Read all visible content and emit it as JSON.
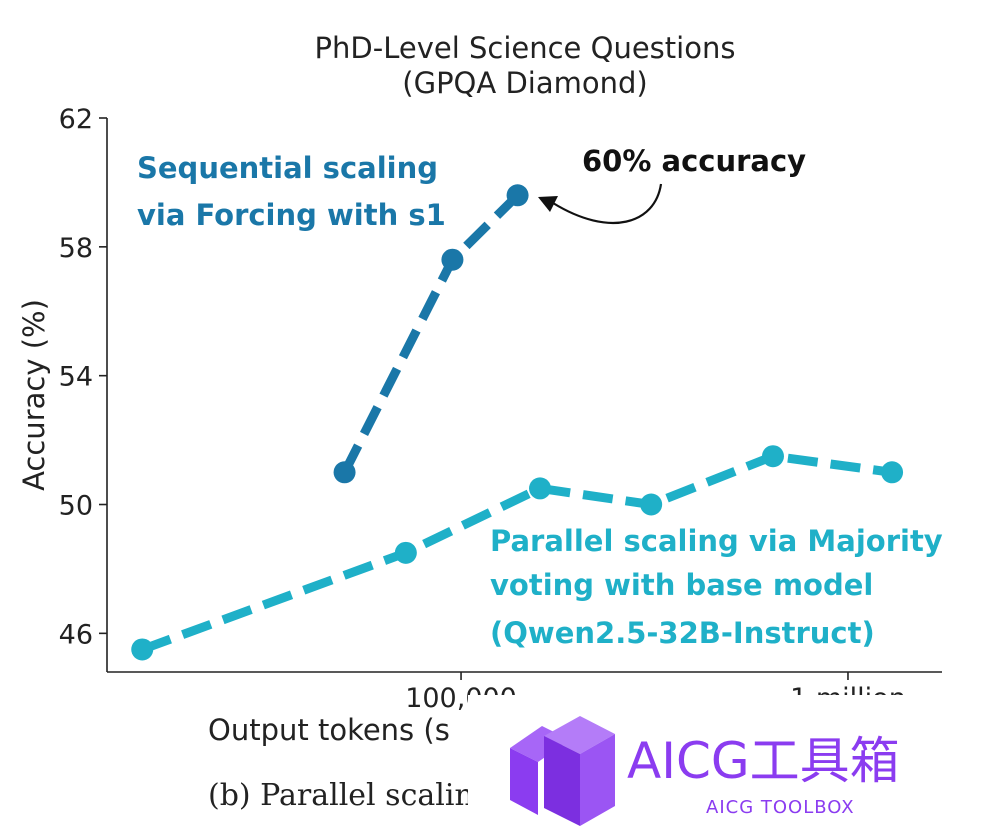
{
  "chart_data": {
    "type": "line",
    "title": [
      "PhD-Level Science Questions",
      "(GPQA Diamond)"
    ],
    "xlabel": "Output tokens (s",
    "ylabel": "Accuracy (%)",
    "x_scale": "log",
    "ylim": [
      44.8,
      62
    ],
    "yticks": [
      46,
      50,
      54,
      58,
      62
    ],
    "xticks": [
      {
        "value": 100000,
        "label": "100,000"
      },
      {
        "value": 1000000,
        "label": "1 million"
      }
    ],
    "series": [
      {
        "name": "Sequential scaling via Forcing with s1",
        "label_lines": [
          "Sequential scaling",
          "via Forcing with s1"
        ],
        "color": "#1a77a8",
        "points": [
          {
            "x": 50000,
            "y": 51.0
          },
          {
            "x": 95000,
            "y": 57.6
          },
          {
            "x": 140000,
            "y": 59.6
          }
        ]
      },
      {
        "name": "Parallel scaling via Majority voting with base model (Qwen2.5-32B-Instruct)",
        "label_lines": [
          "Parallel scaling via Majority",
          "voting with base model",
          "(Qwen2.5-32B-Instruct)"
        ],
        "color": "#1fb0c8",
        "points": [
          {
            "x": 15000,
            "y": 45.5
          },
          {
            "x": 72000,
            "y": 48.5
          },
          {
            "x": 160000,
            "y": 50.5
          },
          {
            "x": 310000,
            "y": 50.0
          },
          {
            "x": 640000,
            "y": 51.5
          },
          {
            "x": 1300000,
            "y": 51.0
          }
        ]
      }
    ],
    "annotations": [
      {
        "text": "60% accuracy"
      }
    ]
  },
  "caption": "(b) Parallel scaling",
  "watermark": {
    "title": "AICG工具箱",
    "subtitle": "AICG TOOLBOX",
    "color": "#8b3cf0"
  }
}
